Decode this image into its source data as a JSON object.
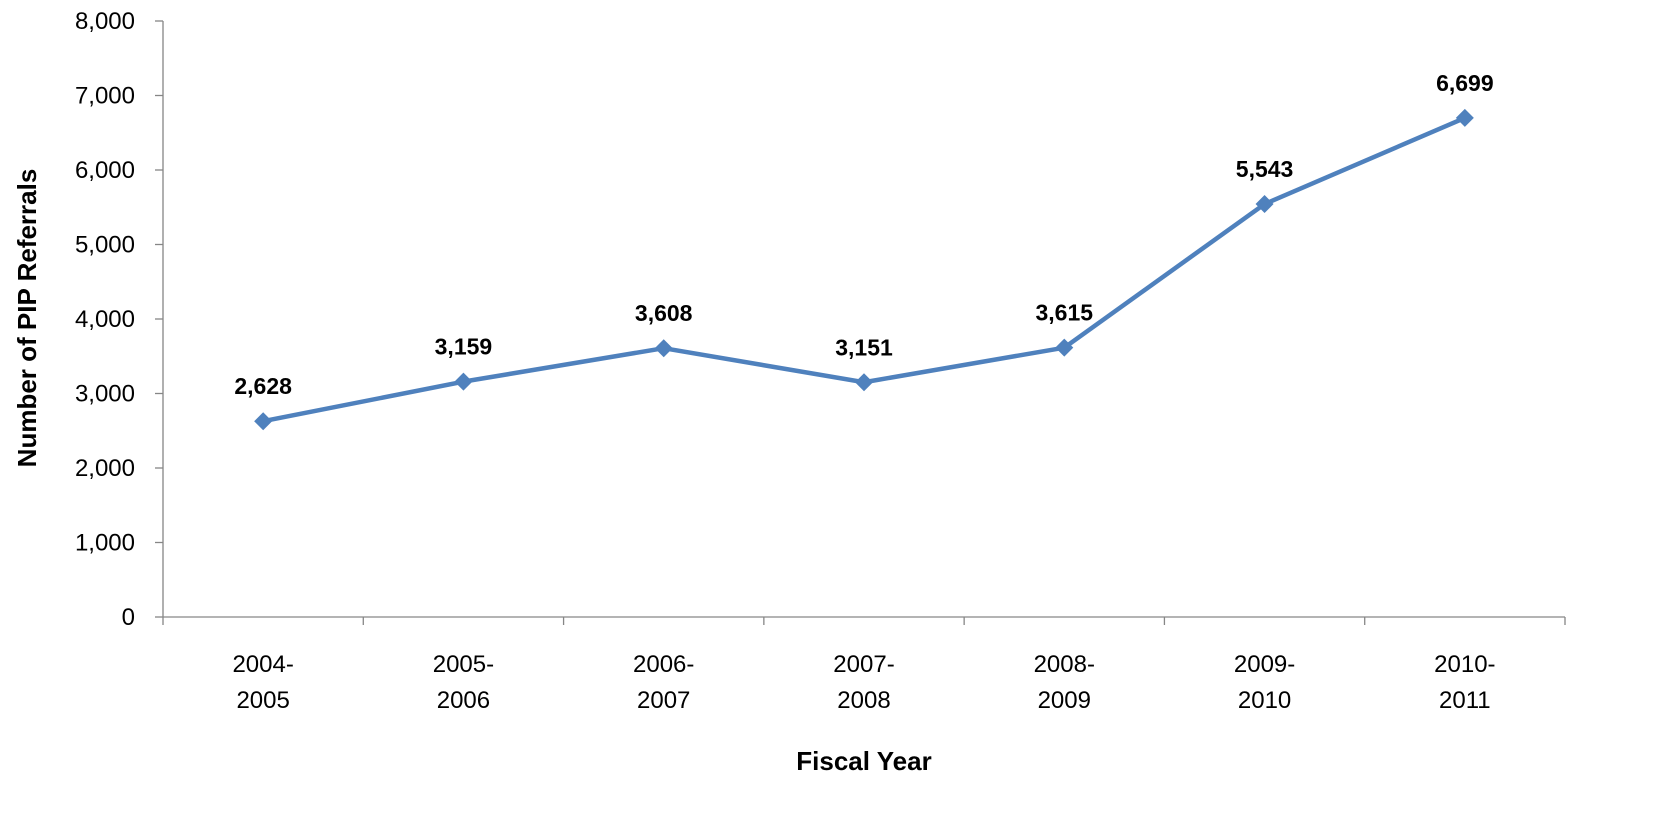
{
  "chart_data": {
    "type": "line",
    "title": "",
    "xlabel": "Fiscal Year",
    "ylabel": "Number of PIP Referrals",
    "categories": [
      [
        "2004-",
        "2005"
      ],
      [
        "2005-",
        "2006"
      ],
      [
        "2006-",
        "2007"
      ],
      [
        "2007-",
        "2008"
      ],
      [
        "2008-",
        "2009"
      ],
      [
        "2009-",
        "2010"
      ],
      [
        "2010-",
        "2011"
      ]
    ],
    "series": [
      {
        "values": [
          2628,
          3159,
          3608,
          3151,
          3615,
          5543,
          6699
        ],
        "data_labels": [
          "2,628",
          "3,159",
          "3,608",
          "3,151",
          "3,615",
          "5,543",
          "6,699"
        ],
        "color": "#4F81BD",
        "marker": "diamond"
      }
    ],
    "ylim": [
      0,
      8000
    ],
    "yticks": [
      0,
      1000,
      2000,
      3000,
      4000,
      5000,
      6000,
      7000,
      8000
    ],
    "ytick_labels": [
      "0",
      "1,000",
      "2,000",
      "3,000",
      "4,000",
      "5,000",
      "6,000",
      "7,000",
      "8,000"
    ],
    "grid": false,
    "legend": "none"
  }
}
